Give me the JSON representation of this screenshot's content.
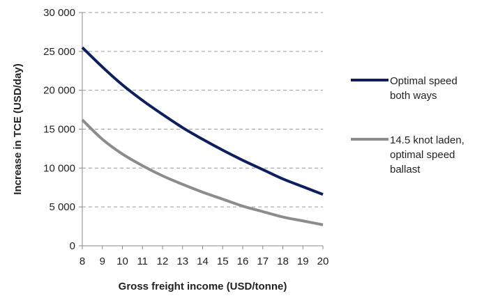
{
  "chart_data": {
    "type": "line",
    "xlabel": "Gross freight income (USD/tonne)",
    "ylabel": "Increase in TCE (USD/day)",
    "xlim": [
      8,
      20
    ],
    "ylim": [
      0,
      30000
    ],
    "x_ticks": [
      "8",
      "9",
      "10",
      "11",
      "12",
      "13",
      "14",
      "15",
      "16",
      "17",
      "18",
      "19",
      "20"
    ],
    "y_ticks": [
      "0",
      "5 000",
      "10 000",
      "15 000",
      "20 000",
      "25 000",
      "30 000"
    ],
    "y_grid": true,
    "legend_position": "right",
    "x": [
      8,
      9,
      10,
      11,
      12,
      13,
      14,
      15,
      16,
      17,
      18,
      19,
      20
    ],
    "series": [
      {
        "name": "Optimal speed both ways",
        "legend_lines": [
          "Optimal speed",
          "both ways"
        ],
        "color": "#0d1f5c",
        "values": [
          25500,
          23000,
          20700,
          18700,
          16900,
          15200,
          13700,
          12300,
          11000,
          9800,
          8600,
          7600,
          6600
        ]
      },
      {
        "name": "14.5 knot laden, optimal speed ballast",
        "legend_lines": [
          "14.5 knot laden,",
          "optimal speed",
          "ballast"
        ],
        "color": "#8c8c8c",
        "values": [
          16200,
          13700,
          11800,
          10300,
          9000,
          7900,
          6900,
          6000,
          5100,
          4400,
          3700,
          3200,
          2700
        ]
      }
    ]
  }
}
